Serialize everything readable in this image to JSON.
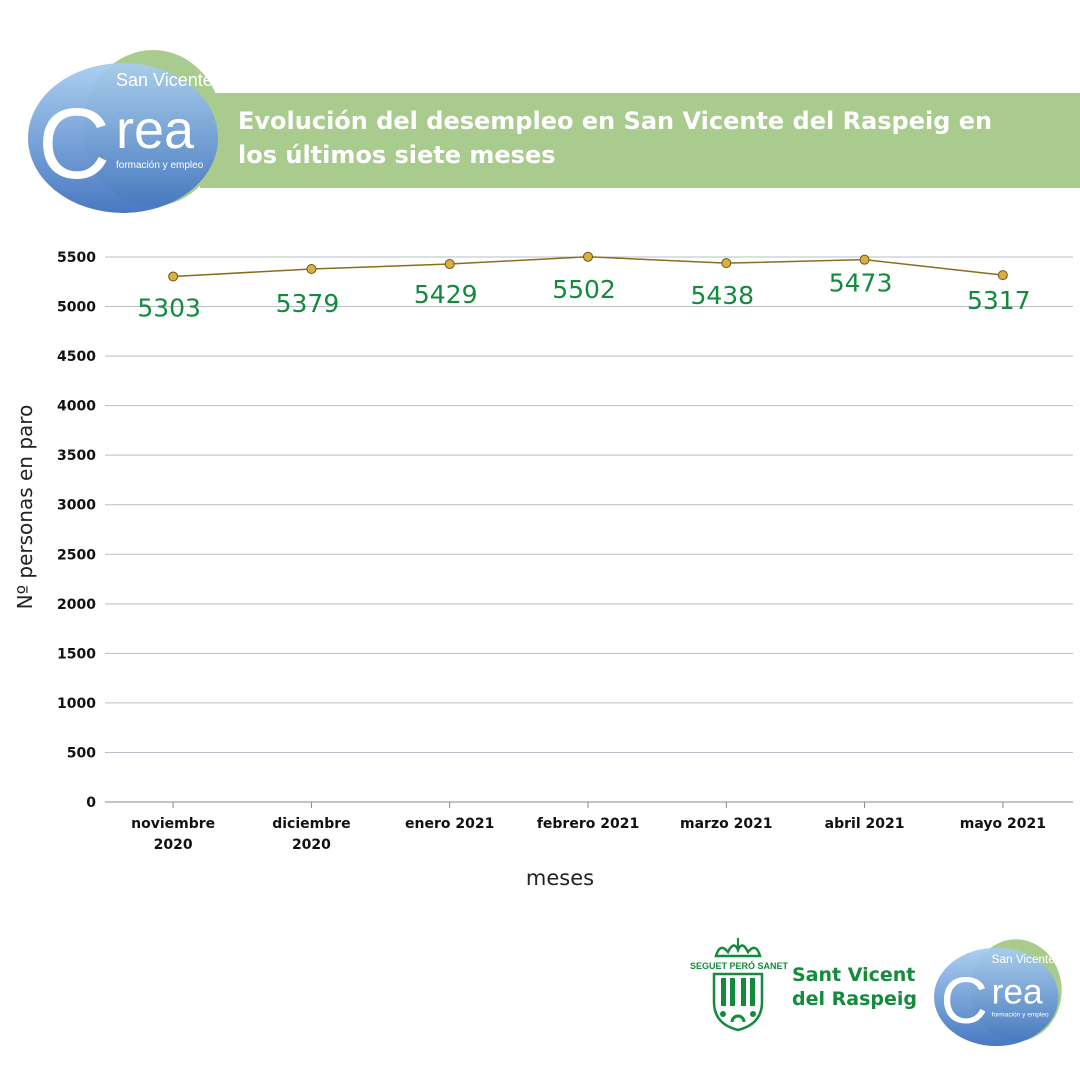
{
  "header": {
    "title": "Evolución del desempleo en San Vicente del Raspeig en los últimos siete meses"
  },
  "logo": {
    "text_top": "San Vicente",
    "text_main": "Crea",
    "text_sub": "formación y empleo"
  },
  "footer": {
    "municipality": "Sant Vicent del Raspeig",
    "municipality_line1": "Sant Vicent",
    "municipality_line2": "del Raspeig",
    "shield_motto": "SEGUET PERÓ SANET"
  },
  "colors": {
    "banner": "#a9cb8e",
    "line": "#8a6d1f",
    "marker": "#d8b040",
    "label": "#138a3c",
    "grid": "#b9bfc6"
  },
  "chart_data": {
    "type": "line",
    "title": "Evolución del desempleo en San Vicente del Raspeig en los últimos siete meses",
    "xlabel": "meses",
    "ylabel": "Nº personas en paro",
    "categories": [
      [
        "noviembre",
        "2020"
      ],
      [
        "diciembre",
        "2020"
      ],
      [
        "enero 2021"
      ],
      [
        "febrero 2021"
      ],
      [
        "marzo 2021"
      ],
      [
        "abril 2021"
      ],
      [
        "mayo 2021"
      ]
    ],
    "values": [
      5303,
      5379,
      5429,
      5502,
      5438,
      5473,
      5317
    ],
    "ylim": [
      0,
      5500
    ],
    "yticks": [
      0,
      500,
      1000,
      1500,
      2000,
      2500,
      3000,
      3500,
      4000,
      4500,
      5000,
      5500
    ],
    "grid": true,
    "legend": "none"
  }
}
